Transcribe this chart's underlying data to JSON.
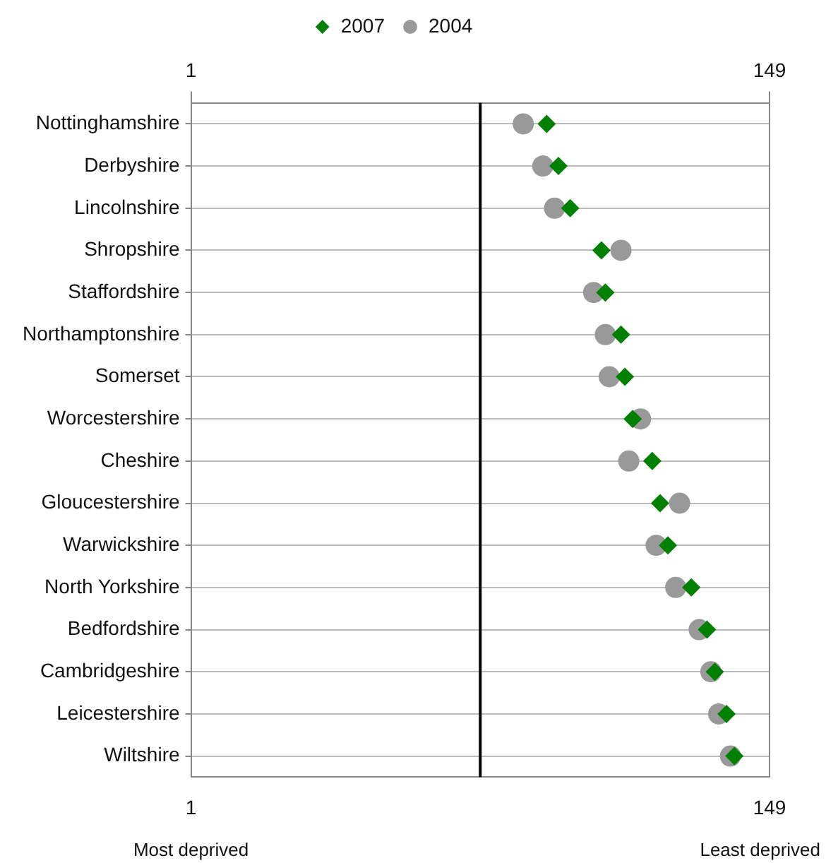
{
  "chart_data": {
    "type": "scatter",
    "orientation": "horizontal",
    "categories": [
      "Nottinghamshire",
      "Derbyshire",
      "Lincolnshire",
      "Shropshire",
      "Staffordshire",
      "Northamptonshire",
      "Somerset",
      "Worcestershire",
      "Cheshire",
      "Gloucestershire",
      "Warwickshire",
      "North Yorkshire",
      "Bedfordshire",
      "Cambridgeshire",
      "Leicestershire",
      "Wiltshire"
    ],
    "series": [
      {
        "name": "2007",
        "color": "#008000",
        "marker": "diamond",
        "values": [
          92,
          95,
          98,
          106,
          107,
          111,
          112,
          114,
          119,
          121,
          123,
          129,
          133,
          135,
          138,
          140
        ]
      },
      {
        "name": "2004",
        "color": "#999999",
        "marker": "circle",
        "values": [
          86,
          91,
          94,
          111,
          104,
          107,
          108,
          116,
          113,
          126,
          120,
          125,
          131,
          134,
          136,
          139
        ]
      }
    ],
    "xlim": [
      1,
      149
    ],
    "xticks": [
      1,
      149
    ],
    "x2lim": [
      1,
      149
    ],
    "x2ticks": [
      1,
      149
    ],
    "ref_lines": [
      {
        "axis": "x",
        "value": 75,
        "color": "#000000"
      }
    ],
    "annotations": [
      "Most deprived",
      "Least deprived"
    ],
    "grid": "y",
    "legend": "top"
  }
}
